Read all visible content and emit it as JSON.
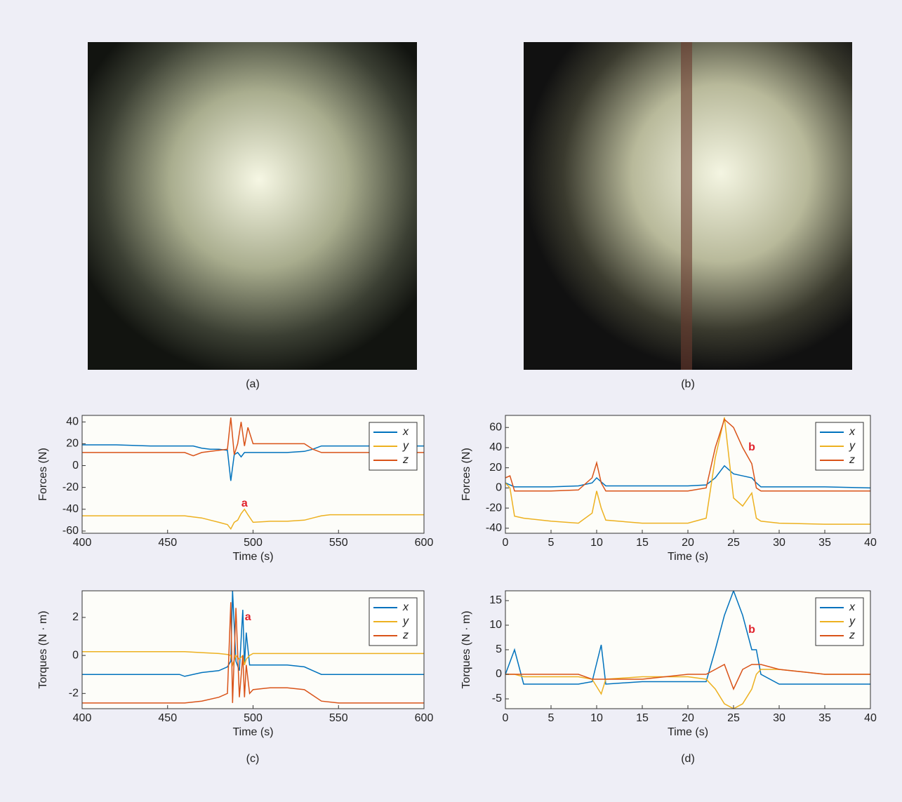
{
  "captions": [
    "(a)",
    "(b)",
    "(c)",
    "(d)"
  ],
  "chart_data": [
    {
      "type": "line",
      "ylabel": "Forces (N)",
      "xlabel": "Time (s)",
      "legend": "upper right",
      "xlim": [
        400,
        600
      ],
      "xticks": [
        400,
        450,
        500,
        550,
        600
      ],
      "ylim": [
        -62,
        46
      ],
      "yticks": [
        -60,
        -40,
        -20,
        0,
        20,
        40
      ],
      "x": [
        400,
        420,
        440,
        460,
        465,
        470,
        475,
        480,
        485,
        487,
        489,
        491,
        493,
        495,
        497,
        500,
        510,
        520,
        530,
        535,
        540,
        545,
        550,
        575,
        600
      ],
      "series": [
        {
          "name": "x",
          "color": "#0072bd",
          "values": [
            19,
            19,
            18,
            18,
            18,
            16,
            15,
            15,
            14,
            -14,
            10,
            12,
            8,
            12,
            12,
            12,
            12,
            12,
            13,
            15,
            18,
            18,
            18,
            18,
            18
          ]
        },
        {
          "name": "y",
          "color": "#edb120",
          "values": [
            -46,
            -46,
            -46,
            -46,
            -47,
            -48,
            -50,
            -52,
            -54,
            -58,
            -52,
            -50,
            -44,
            -40,
            -45,
            -52,
            -51,
            -51,
            -50,
            -48,
            -46,
            -45,
            -45,
            -45,
            -45
          ]
        },
        {
          "name": "z",
          "color": "#d95319",
          "values": [
            12,
            12,
            12,
            12,
            9,
            12,
            13,
            14,
            15,
            44,
            10,
            20,
            40,
            18,
            35,
            20,
            20,
            20,
            20,
            15,
            12,
            12,
            12,
            12,
            12
          ]
        }
      ],
      "annotations": [
        {
          "text": "a",
          "x": 495,
          "y": -35
        }
      ]
    },
    {
      "type": "line",
      "ylabel": "Forces (N)",
      "xlabel": "Time (s)",
      "legend": "upper right",
      "xlim": [
        0,
        40
      ],
      "xticks": [
        0,
        5,
        10,
        15,
        20,
        25,
        30,
        35,
        40
      ],
      "ylim": [
        -45,
        72
      ],
      "yticks": [
        -40,
        -20,
        0,
        20,
        40,
        60
      ],
      "x": [
        0,
        0.5,
        1,
        2,
        5,
        8,
        9.5,
        10,
        10.5,
        11,
        15,
        20,
        22,
        23,
        24,
        25,
        26,
        27,
        27.5,
        28,
        30,
        35,
        40
      ],
      "series": [
        {
          "name": "x",
          "color": "#0072bd",
          "values": [
            5,
            3,
            1,
            1,
            1,
            2,
            5,
            10,
            6,
            2,
            2,
            2,
            3,
            10,
            22,
            14,
            12,
            10,
            5,
            1,
            1,
            1,
            0
          ]
        },
        {
          "name": "y",
          "color": "#edb120",
          "values": [
            5,
            0,
            -28,
            -30,
            -33,
            -35,
            -25,
            -3,
            -20,
            -32,
            -35,
            -35,
            -30,
            30,
            70,
            -10,
            -18,
            -5,
            -30,
            -33,
            -35,
            -36,
            -36
          ]
        },
        {
          "name": "z",
          "color": "#d95319",
          "values": [
            10,
            12,
            -3,
            -3,
            -3,
            -2,
            10,
            25,
            5,
            -3,
            -3,
            -3,
            0,
            40,
            68,
            60,
            40,
            24,
            0,
            -3,
            -3,
            -3,
            -3
          ]
        }
      ],
      "annotations": [
        {
          "text": "b",
          "x": 27,
          "y": 40
        }
      ]
    },
    {
      "type": "line",
      "ylabel": "Torques (N · m)",
      "xlabel": "Time (s)",
      "legend": "upper right",
      "xlim": [
        400,
        600
      ],
      "xticks": [
        400,
        450,
        500,
        550,
        600
      ],
      "ylim": [
        -2.8,
        3.4
      ],
      "yticks": [
        -2,
        0,
        2
      ],
      "x": [
        400,
        420,
        440,
        457,
        460,
        470,
        480,
        485,
        487,
        488,
        490,
        492,
        494,
        495,
        496,
        498,
        500,
        510,
        520,
        530,
        535,
        540,
        550,
        575,
        600
      ],
      "series": [
        {
          "name": "x",
          "color": "#0072bd",
          "values": [
            -1,
            -1,
            -1,
            -1,
            -1.1,
            -0.9,
            -0.8,
            -0.6,
            -0.3,
            3.4,
            -0.3,
            -0.8,
            2.4,
            -0.5,
            1.2,
            -0.5,
            -0.5,
            -0.5,
            -0.5,
            -0.6,
            -0.8,
            -1,
            -1,
            -1,
            -1
          ]
        },
        {
          "name": "y",
          "color": "#edb120",
          "values": [
            0.2,
            0.2,
            0.2,
            0.2,
            0.2,
            0.15,
            0.1,
            0.05,
            0,
            -0.5,
            0,
            -0.2,
            0,
            -0.5,
            -0.2,
            0,
            0.1,
            0.1,
            0.1,
            0.1,
            0.1,
            0.1,
            0.1,
            0.1,
            0.1
          ]
        },
        {
          "name": "z",
          "color": "#d95319",
          "values": [
            -2.5,
            -2.5,
            -2.5,
            -2.5,
            -2.5,
            -2.4,
            -2.2,
            -2,
            2.8,
            -2.5,
            2.5,
            -2.2,
            0,
            -2.2,
            -0.5,
            -2,
            -1.8,
            -1.7,
            -1.7,
            -1.8,
            -2.1,
            -2.4,
            -2.5,
            -2.5,
            -2.5
          ]
        }
      ],
      "annotations": [
        {
          "text": "a",
          "x": 497,
          "y": 2
        }
      ]
    },
    {
      "type": "line",
      "ylabel": "Torques (N · m)",
      "xlabel": "Time (s)",
      "legend": "upper right",
      "xlim": [
        0,
        40
      ],
      "xticks": [
        0,
        5,
        10,
        15,
        20,
        25,
        30,
        35,
        40
      ],
      "ylim": [
        -7,
        17
      ],
      "yticks": [
        -5,
        0,
        5,
        10,
        15
      ],
      "x": [
        0,
        1,
        2,
        5,
        8,
        9.5,
        10.5,
        11,
        15,
        20,
        22,
        23,
        24,
        25,
        26,
        27,
        27.5,
        28,
        30,
        35,
        40
      ],
      "series": [
        {
          "name": "x",
          "color": "#0072bd",
          "values": [
            0,
            5,
            -2,
            -2,
            -2,
            -1.5,
            6,
            -2,
            -1.5,
            -1.5,
            -1.5,
            5,
            12,
            17,
            12,
            5,
            5,
            0,
            -2,
            -2,
            -2
          ]
        },
        {
          "name": "y",
          "color": "#edb120",
          "values": [
            0,
            0,
            -0.5,
            -0.5,
            -0.5,
            -1,
            -4,
            -1,
            -0.5,
            -0.5,
            -1,
            -3,
            -6,
            -7,
            -6,
            -3,
            0,
            1,
            1,
            0,
            0
          ]
        },
        {
          "name": "z",
          "color": "#d95319",
          "values": [
            0,
            0,
            0,
            0,
            0,
            -1,
            -1,
            -1,
            -1,
            0,
            0,
            1,
            2,
            -3,
            1,
            2,
            2,
            2,
            1,
            0,
            0
          ]
        }
      ],
      "annotations": [
        {
          "text": "b",
          "x": 27,
          "y": 9
        }
      ]
    }
  ]
}
